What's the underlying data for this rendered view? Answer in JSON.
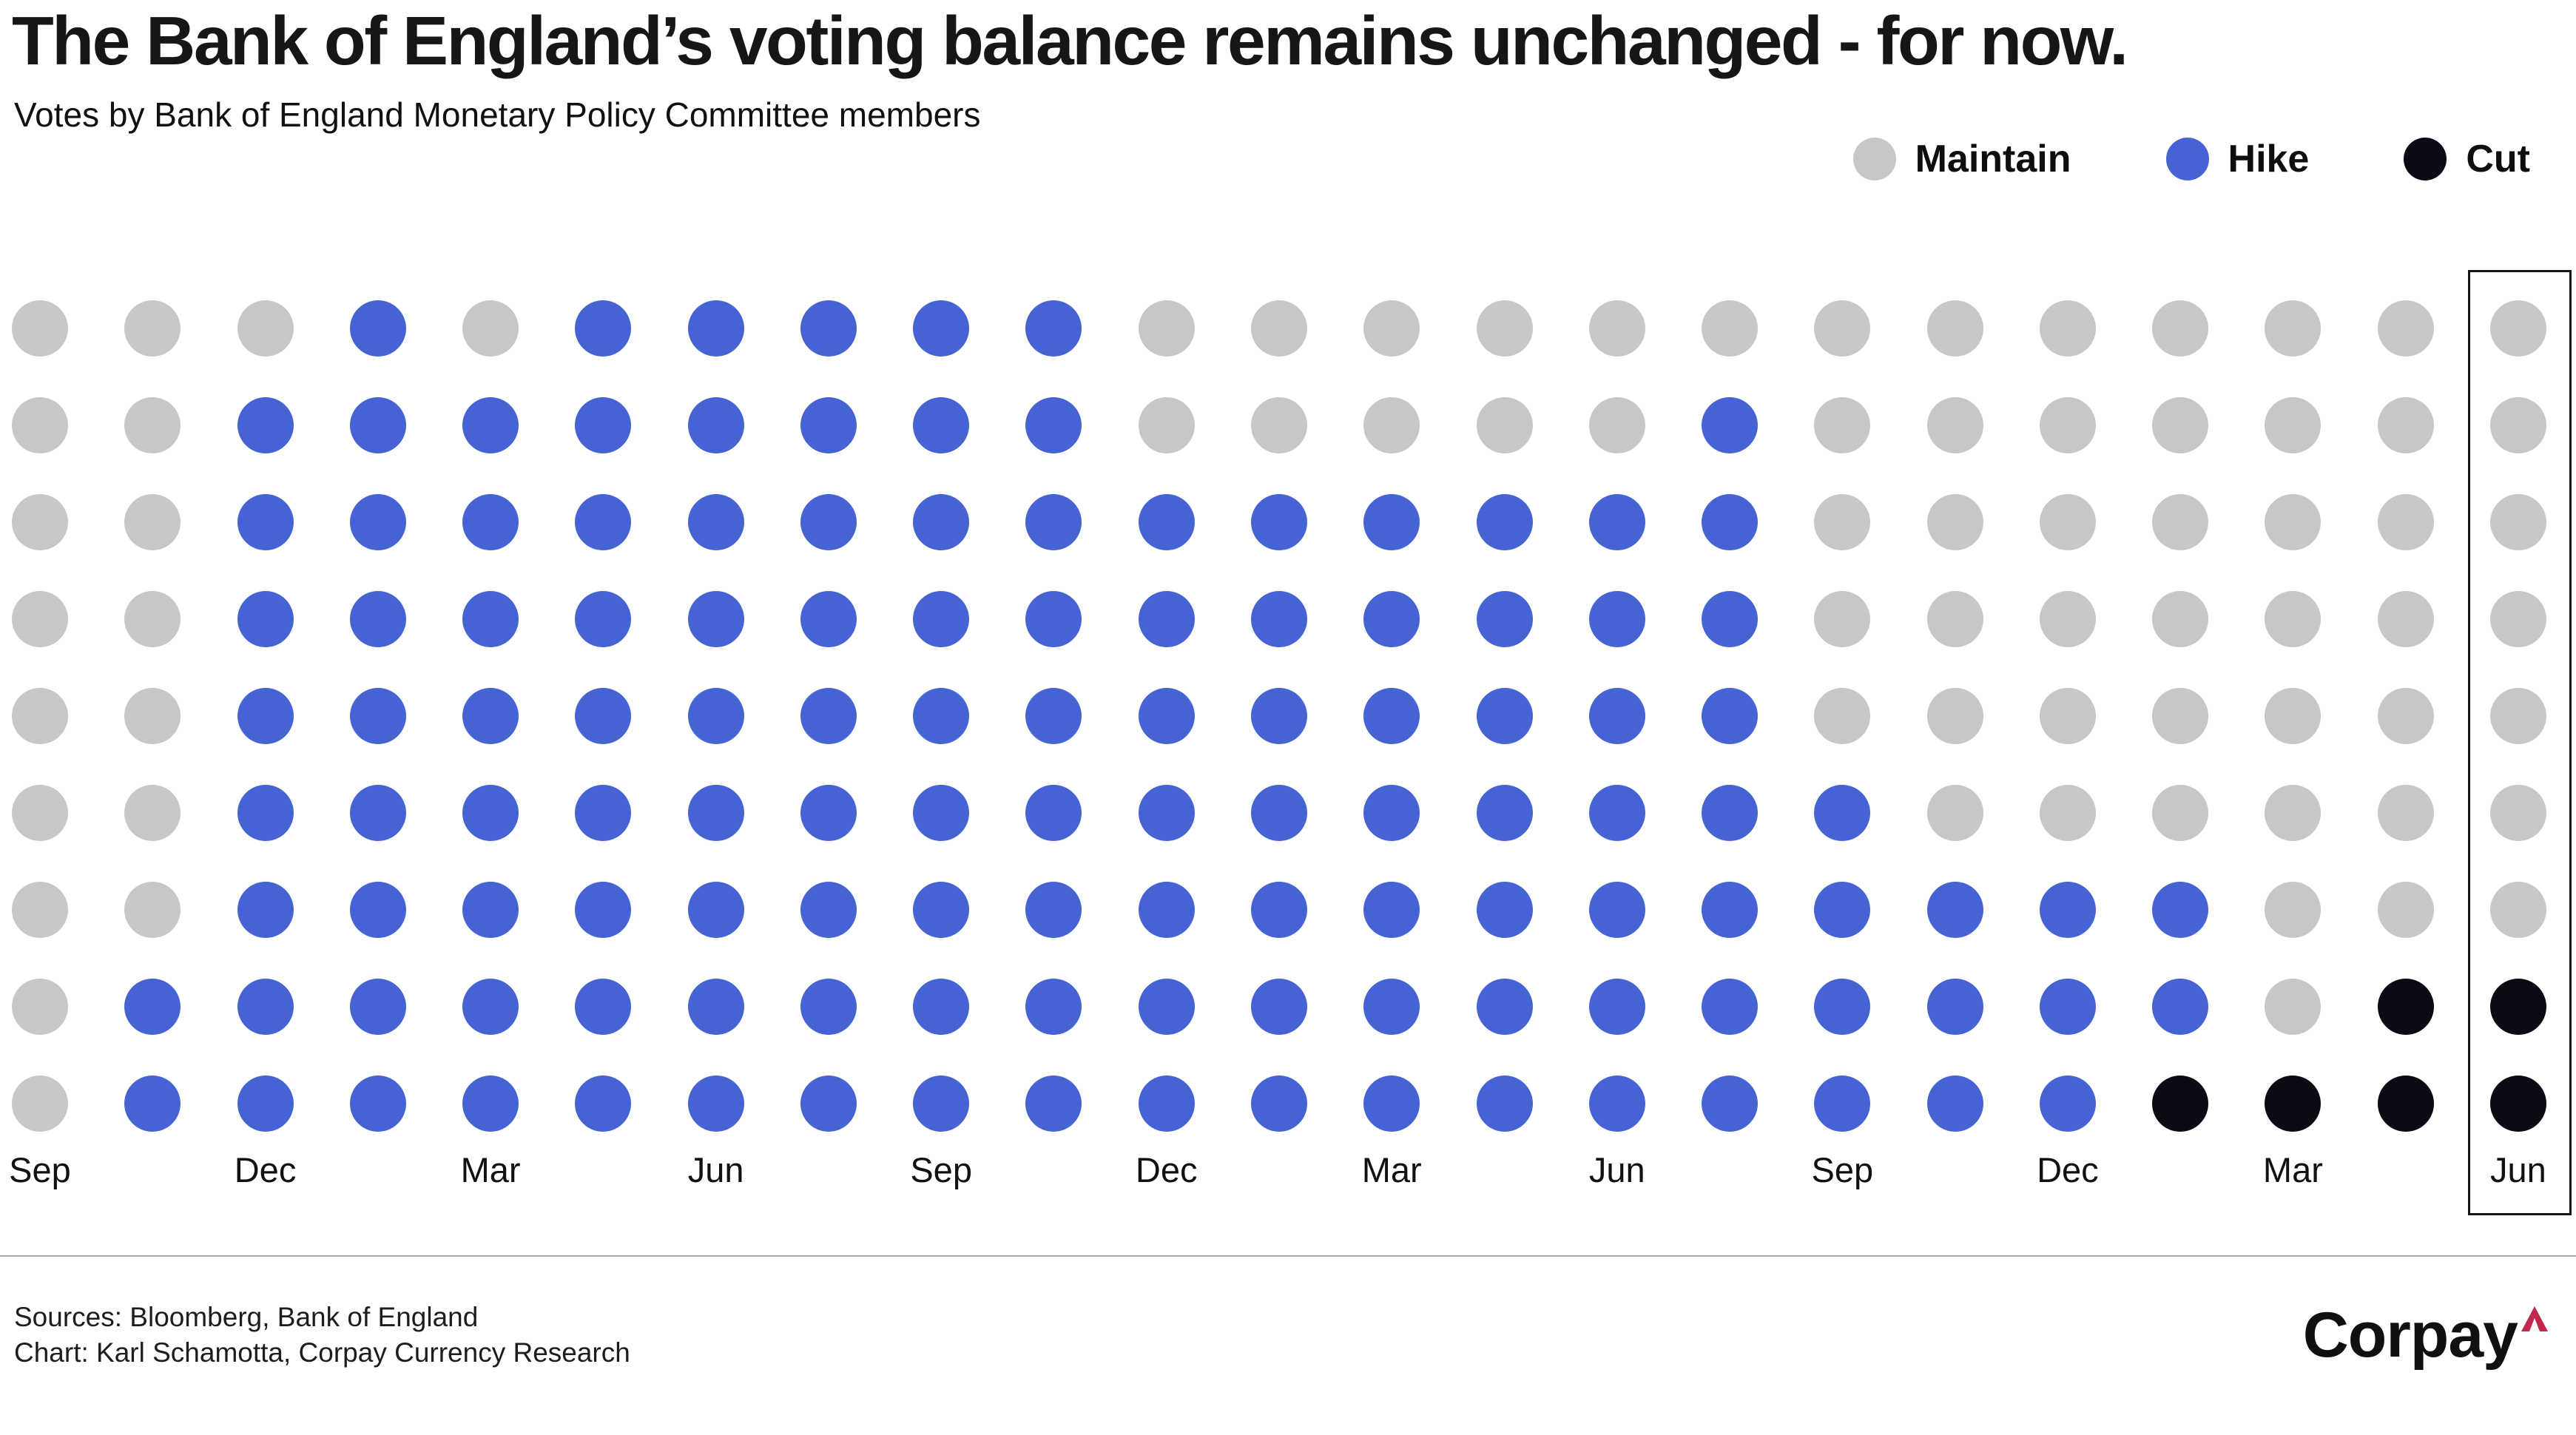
{
  "header": {
    "title": "The Bank of England’s voting balance remains unchanged - for now.",
    "subtitle": "Votes by Bank of England Monetary Policy Committee members"
  },
  "legend": {
    "items": [
      {
        "label": "Maintain",
        "color": "#c7c7c7"
      },
      {
        "label": "Hike",
        "color": "#4663d4"
      },
      {
        "label": "Cut",
        "color": "#0b0b16"
      }
    ]
  },
  "chart_data": {
    "type": "dot-matrix",
    "title": "The Bank of England’s voting balance remains unchanged - for now.",
    "rows_per_column": 9,
    "vote_colors": {
      "maintain": "#c7c7c7",
      "hike": "#4663d4",
      "cut": "#0b0b16"
    },
    "stack_order_top_to_bottom": [
      "maintain",
      "hike",
      "cut"
    ],
    "columns": [
      {
        "label": "Sep",
        "maintain": 9,
        "hike": 0,
        "cut": 0
      },
      {
        "label": "",
        "maintain": 7,
        "hike": 2,
        "cut": 0
      },
      {
        "label": "Dec",
        "maintain": 1,
        "hike": 8,
        "cut": 0
      },
      {
        "label": "",
        "maintain": 0,
        "hike": 9,
        "cut": 0
      },
      {
        "label": "Mar",
        "maintain": 1,
        "hike": 8,
        "cut": 0
      },
      {
        "label": "",
        "maintain": 0,
        "hike": 9,
        "cut": 0
      },
      {
        "label": "Jun",
        "maintain": 0,
        "hike": 9,
        "cut": 0
      },
      {
        "label": "",
        "maintain": 0,
        "hike": 9,
        "cut": 0
      },
      {
        "label": "Sep",
        "maintain": 0,
        "hike": 9,
        "cut": 0
      },
      {
        "label": "",
        "maintain": 0,
        "hike": 9,
        "cut": 0
      },
      {
        "label": "Dec",
        "maintain": 2,
        "hike": 7,
        "cut": 0
      },
      {
        "label": "",
        "maintain": 2,
        "hike": 7,
        "cut": 0
      },
      {
        "label": "Mar",
        "maintain": 2,
        "hike": 7,
        "cut": 0
      },
      {
        "label": "",
        "maintain": 2,
        "hike": 7,
        "cut": 0
      },
      {
        "label": "Jun",
        "maintain": 2,
        "hike": 7,
        "cut": 0
      },
      {
        "label": "",
        "maintain": 1,
        "hike": 8,
        "cut": 0
      },
      {
        "label": "Sep",
        "maintain": 5,
        "hike": 4,
        "cut": 0
      },
      {
        "label": "",
        "maintain": 6,
        "hike": 3,
        "cut": 0
      },
      {
        "label": "Dec",
        "maintain": 6,
        "hike": 3,
        "cut": 0
      },
      {
        "label": "",
        "maintain": 6,
        "hike": 2,
        "cut": 1
      },
      {
        "label": "Mar",
        "maintain": 8,
        "hike": 0,
        "cut": 1
      },
      {
        "label": "",
        "maintain": 7,
        "hike": 0,
        "cut": 2
      },
      {
        "label": "Jun",
        "maintain": 7,
        "hike": 0,
        "cut": 2
      }
    ],
    "highlight_last_column": true,
    "legend_position": "top-right",
    "grid": "off"
  },
  "footer": {
    "sources": "Sources: Bloomberg, Bank of England",
    "credit": "Chart: Karl Schamotta, Corpay Currency Research",
    "logo_text": "Corpay",
    "logo_caret_color": "#c0294d"
  }
}
